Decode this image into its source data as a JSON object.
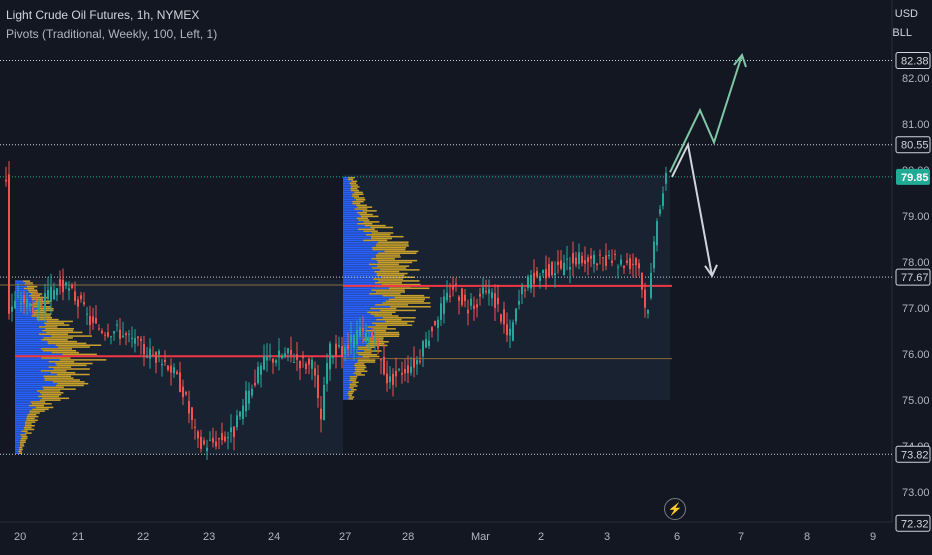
{
  "header": {
    "title": "Light Crude Oil Futures, 1h, NYMEX",
    "subtitle": "Pivots (Traditional, Weekly, 100, Left, 1)",
    "currency": "USD",
    "unit": "BLL"
  },
  "chart_data": {
    "type": "candlestick",
    "title": "Light Crude Oil Futures, 1h, NYMEX",
    "x_ticks": [
      "20",
      "21",
      "22",
      "23",
      "24",
      "27",
      "28",
      "Mar",
      "2",
      "3",
      "6",
      "7",
      "8",
      "9"
    ],
    "y_ticks": [
      "82.00",
      "81.00",
      "80.00",
      "79.00",
      "78.00",
      "77.00",
      "76.00",
      "75.00",
      "74.00",
      "73.00"
    ],
    "ylim": [
      72.2,
      83.0
    ],
    "pivot_levels": [
      {
        "label": "82.38",
        "value": 82.38
      },
      {
        "label": "80.55",
        "value": 80.55
      },
      {
        "label": "77.67",
        "value": 77.67
      },
      {
        "label": "73.82",
        "value": 73.82
      },
      {
        "label": "72.32",
        "value": 72.32
      }
    ],
    "last_price": {
      "label": "79.85",
      "value": 79.85
    },
    "volume_profiles": [
      {
        "session": "week1",
        "poc": 75.95,
        "value_area_high": 77.6,
        "value_area_low": 73.85
      },
      {
        "session": "week2",
        "poc": 77.48,
        "value_area_high": 79.85,
        "value_area_low": 75.0
      }
    ],
    "projections": [
      {
        "direction": "up",
        "path": [
          [
            79.95,
            0
          ],
          [
            81.3,
            1
          ],
          [
            80.6,
            2
          ],
          [
            82.5,
            3
          ]
        ]
      },
      {
        "direction": "down",
        "path": [
          [
            79.85,
            0
          ],
          [
            80.55,
            1
          ],
          [
            77.7,
            2
          ]
        ]
      }
    ],
    "colors": {
      "up": "#26a69a",
      "down": "#ef5350",
      "profile_blue": "#2962ff",
      "profile_yellow": "#e5b52c",
      "poc": "#f23645",
      "arrow_up": "#7fc6a4",
      "arrow_down": "#d1d4dc",
      "last_price_tag": "#22ab94"
    },
    "grid": false
  }
}
